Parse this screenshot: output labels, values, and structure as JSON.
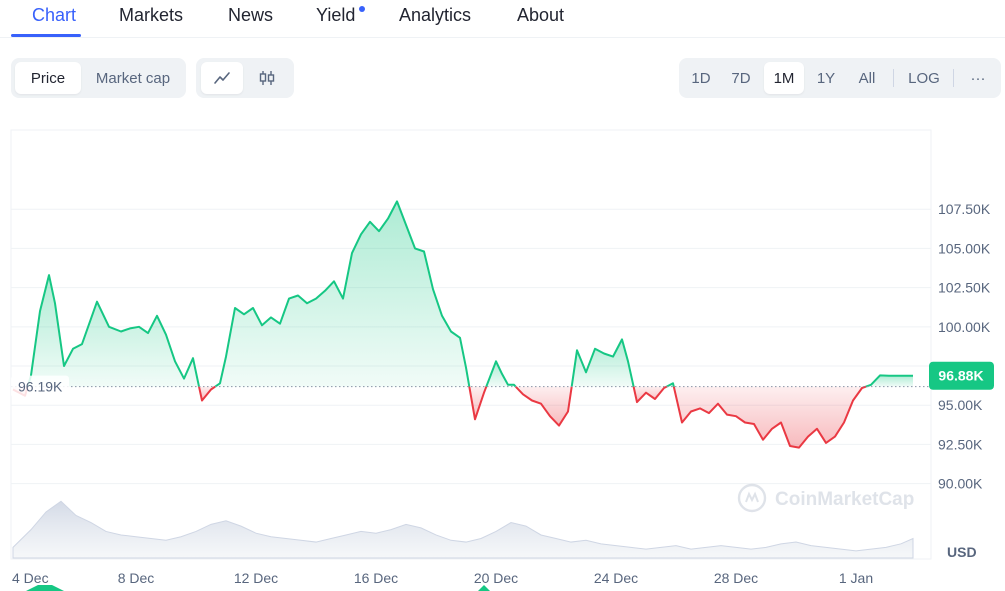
{
  "nav": {
    "tabs": [
      {
        "label": "Chart"
      },
      {
        "label": "Markets"
      },
      {
        "label": "News"
      },
      {
        "label": "Yield"
      },
      {
        "label": "Analytics"
      },
      {
        "label": "About"
      }
    ]
  },
  "toolbar": {
    "price_label": "Price",
    "market_cap_label": "Market cap",
    "line_icon": "line-chart-icon",
    "candle_icon": "candlestick-icon",
    "ranges": [
      "1D",
      "7D",
      "1M",
      "1Y",
      "All"
    ],
    "active_range": "1M",
    "log_label": "LOG",
    "more_label": "···"
  },
  "watermark": "CoinMarketCap",
  "colors": {
    "up": "#16c784",
    "down": "#ea3943",
    "accent": "#3861fb"
  },
  "chart_data": {
    "type": "area",
    "baseline": 96190,
    "baseline_label": "96.19K",
    "current_label": "96.88K",
    "y_unit_label": "USD",
    "ylim": [
      88000,
      110000
    ],
    "y_ticks": [
      {
        "value": 90000,
        "label": "90.00K"
      },
      {
        "value": 92500,
        "label": "92.50K"
      },
      {
        "value": 95000,
        "label": "95.00K"
      },
      {
        "value": 97500,
        "label": ""
      },
      {
        "value": 100000,
        "label": "100.00K"
      },
      {
        "value": 102500,
        "label": "102.50K"
      },
      {
        "value": 105000,
        "label": "105.00K"
      },
      {
        "value": 107500,
        "label": "107.50K"
      }
    ],
    "xlim": [
      3.9,
      34.5
    ],
    "x_ticks": [
      {
        "value": 4,
        "label": "4 Dec"
      },
      {
        "value": 8,
        "label": "8 Dec"
      },
      {
        "value": 12,
        "label": "12 Dec"
      },
      {
        "value": 16,
        "label": "16 Dec"
      },
      {
        "value": 20,
        "label": "20 Dec"
      },
      {
        "value": 24,
        "label": "24 Dec"
      },
      {
        "value": 28,
        "label": "28 Dec"
      },
      {
        "value": 32,
        "label": "1 Jan"
      }
    ],
    "x_note": "x values are days counted from 1 Dec (32 = 1 Jan)",
    "price": {
      "x": [
        3.9,
        4.3,
        4.5,
        4.8,
        5.1,
        5.3,
        5.6,
        5.9,
        6.2,
        6.7,
        7.1,
        7.5,
        7.8,
        8.1,
        8.4,
        8.7,
        9.0,
        9.3,
        9.6,
        9.9,
        10.2,
        10.5,
        10.8,
        11.0,
        11.3,
        11.6,
        11.9,
        12.2,
        12.5,
        12.8,
        13.1,
        13.4,
        13.7,
        14.0,
        14.3,
        14.6,
        14.9,
        15.2,
        15.5,
        15.8,
        16.1,
        16.4,
        16.7,
        17.0,
        17.3,
        17.6,
        17.9,
        18.2,
        18.5,
        18.8,
        19.0,
        19.3,
        19.6,
        19.8,
        20.0,
        20.2,
        20.4,
        20.6,
        20.9,
        21.2,
        21.5,
        21.8,
        22.1,
        22.4,
        22.7,
        23.0,
        23.3,
        23.6,
        23.9,
        24.2,
        24.4,
        24.7,
        25.0,
        25.3,
        25.6,
        25.9,
        26.2,
        26.5,
        26.8,
        27.1,
        27.4,
        27.7,
        28.0,
        28.3,
        28.6,
        28.9,
        29.2,
        29.5,
        29.8,
        30.1,
        30.4,
        30.7,
        31.0,
        31.3,
        31.6,
        31.9,
        32.2,
        32.5,
        32.8,
        33.1,
        33.4,
        33.7,
        34.0,
        34.5
      ],
      "y": [
        96000,
        95600,
        96900,
        101000,
        103300,
        101500,
        97500,
        98600,
        98900,
        101600,
        100000,
        99700,
        99900,
        100000,
        99600,
        100700,
        99500,
        97800,
        96700,
        98000,
        95300,
        96000,
        96400,
        98100,
        101200,
        100800,
        101200,
        100100,
        100600,
        100200,
        101800,
        102000,
        101500,
        101800,
        102300,
        102900,
        101800,
        104700,
        105900,
        106700,
        106100,
        106900,
        108000,
        106500,
        105000,
        104800,
        102400,
        100700,
        99700,
        99300,
        97400,
        94100,
        95800,
        96800,
        97800,
        97000,
        96300,
        96300,
        95700,
        95300,
        95100,
        94300,
        93700,
        94600,
        98500,
        97100,
        98600,
        98300,
        98100,
        99200,
        97800,
        95200,
        95800,
        95400,
        96100,
        96400,
        93900,
        94600,
        94800,
        94500,
        95100,
        94400,
        94300,
        93900,
        93800,
        92800,
        93500,
        93900,
        92400,
        92300,
        93000,
        93500,
        92600,
        93000,
        93900,
        95300,
        96100,
        96300,
        96900,
        96880,
        96880,
        96880,
        96880,
        96880
      ],
      "x_end": 33.9
    },
    "volume": {
      "x": [
        3.9,
        4.5,
        5.0,
        5.5,
        6.0,
        6.5,
        7.0,
        7.5,
        8.0,
        8.5,
        9.0,
        9.5,
        10.0,
        10.5,
        11.0,
        11.5,
        12.0,
        12.5,
        13.0,
        13.5,
        14.0,
        14.5,
        15.0,
        15.5,
        16.0,
        16.5,
        17.0,
        17.5,
        18.0,
        18.5,
        19.0,
        19.5,
        20.0,
        20.5,
        21.0,
        21.5,
        22.0,
        22.5,
        23.0,
        23.5,
        24.0,
        24.5,
        25.0,
        25.5,
        26.0,
        26.5,
        27.0,
        27.5,
        28.0,
        28.5,
        29.0,
        29.5,
        30.0,
        30.5,
        31.0,
        31.5,
        32.0,
        32.5,
        33.0,
        33.5,
        33.9
      ],
      "v": [
        12,
        32,
        52,
        64,
        48,
        40,
        30,
        26,
        24,
        22,
        20,
        24,
        30,
        38,
        42,
        36,
        28,
        24,
        22,
        20,
        18,
        22,
        26,
        30,
        28,
        32,
        38,
        34,
        26,
        20,
        18,
        22,
        30,
        40,
        36,
        26,
        22,
        18,
        20,
        16,
        14,
        12,
        10,
        12,
        14,
        10,
        12,
        14,
        12,
        10,
        12,
        16,
        18,
        14,
        12,
        10,
        8,
        10,
        12,
        16,
        22
      ],
      "vmax": 70
    }
  }
}
